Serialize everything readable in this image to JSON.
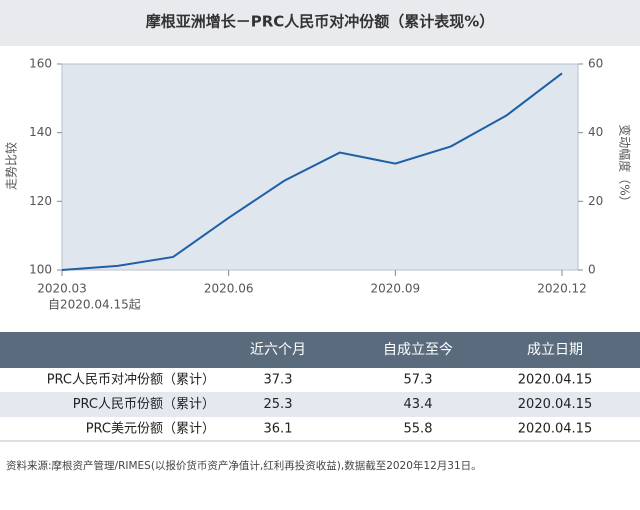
{
  "chart_data": {
    "type": "line",
    "title": "摩根亚洲增长－PRC人民币对冲份额（累计表现%）",
    "y_label": "走势比较",
    "y2_label": "变动幅度（%）",
    "annotation": "自2020.04.15起",
    "categories": [
      "2020.03",
      null,
      null,
      "2020.06",
      null,
      null,
      "2020.09",
      null,
      null,
      "2020.12"
    ],
    "values": [
      100,
      101.2,
      103.8,
      115.2,
      126,
      134.2,
      131,
      136,
      145,
      157.3
    ],
    "color": "#1f5fa6",
    "ylim": [
      100,
      160
    ],
    "yticks": [
      100,
      120,
      140,
      160
    ],
    "y2lim": [
      0,
      60
    ],
    "y2ticks": [
      0,
      20,
      40,
      60
    ],
    "grid": false
  },
  "table": {
    "columns": [
      "近六个月",
      "自成立至今",
      "成立日期"
    ],
    "rows": [
      {
        "label": "PRC人民币对冲份额（累计）",
        "cells": [
          37.3,
          57.3,
          "2020.04.15"
        ]
      },
      {
        "label": "PRC人民币份额（累计）",
        "cells": [
          25.3,
          43.4,
          "2020.04.15"
        ]
      },
      {
        "label": "PRC美元份额（累计）",
        "cells": [
          36.1,
          55.8,
          "2020.04.15"
        ]
      }
    ]
  },
  "footnote": "资料来源:摩根资产管理/RIMES(以报价货币资产净值计,红利再投资收益),数据截至2020年12月31日。"
}
